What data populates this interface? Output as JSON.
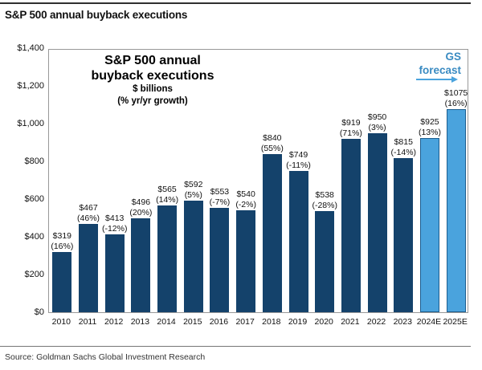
{
  "page": {
    "header_title": "S&P 500 annual buyback executions",
    "source": "Source: Goldman Sachs Global Investment Research"
  },
  "chart_data": {
    "type": "bar",
    "title_line1": "S&P 500 annual",
    "title_line2": "buyback executions",
    "subtitle_line1": "$ billions",
    "subtitle_line2": "(% yr/yr growth)",
    "forecast_label_line1": "GS",
    "forecast_label_line2": "forecast",
    "categories": [
      "2010",
      "2011",
      "2012",
      "2013",
      "2014",
      "2015",
      "2016",
      "2017",
      "2018",
      "2019",
      "2020",
      "2021",
      "2022",
      "2023",
      "2024E",
      "2025E"
    ],
    "values": [
      319,
      467,
      413,
      496,
      565,
      592,
      553,
      540,
      840,
      749,
      538,
      919,
      950,
      815,
      925,
      1075
    ],
    "value_labels": [
      "$319",
      "$467",
      "$413",
      "$496",
      "$565",
      "$592",
      "$553",
      "$540",
      "$840",
      "$749",
      "$538",
      "$919",
      "$950",
      "$815",
      "$925",
      "$1075"
    ],
    "growth_labels": [
      "(16%)",
      "(46%)",
      "(-12%)",
      "(20%)",
      "(14%)",
      "(5%)",
      "(-7%)",
      "(-2%)",
      "(55%)",
      "(-11%)",
      "(-28%)",
      "(71%)",
      "(3%)",
      "(-14%)",
      "(13%)",
      "(16%)"
    ],
    "forecast_flags": [
      false,
      false,
      false,
      false,
      false,
      false,
      false,
      false,
      false,
      false,
      false,
      false,
      false,
      false,
      true,
      true
    ],
    "yticks": [
      "$1,400",
      "$1,200",
      "$1,000",
      "$800",
      "$600",
      "$400",
      "$200",
      "$0"
    ],
    "ylim": [
      0,
      1400
    ],
    "ytick_step": 200,
    "grid": false,
    "legend_position": "none",
    "colors": {
      "actual_bar": "#14426B",
      "forecast_bar": "#4AA3DD",
      "forecast_bar_border": "#1D5E8F",
      "forecast_text": "#3A8BC2",
      "axis_border": "#999999"
    }
  }
}
